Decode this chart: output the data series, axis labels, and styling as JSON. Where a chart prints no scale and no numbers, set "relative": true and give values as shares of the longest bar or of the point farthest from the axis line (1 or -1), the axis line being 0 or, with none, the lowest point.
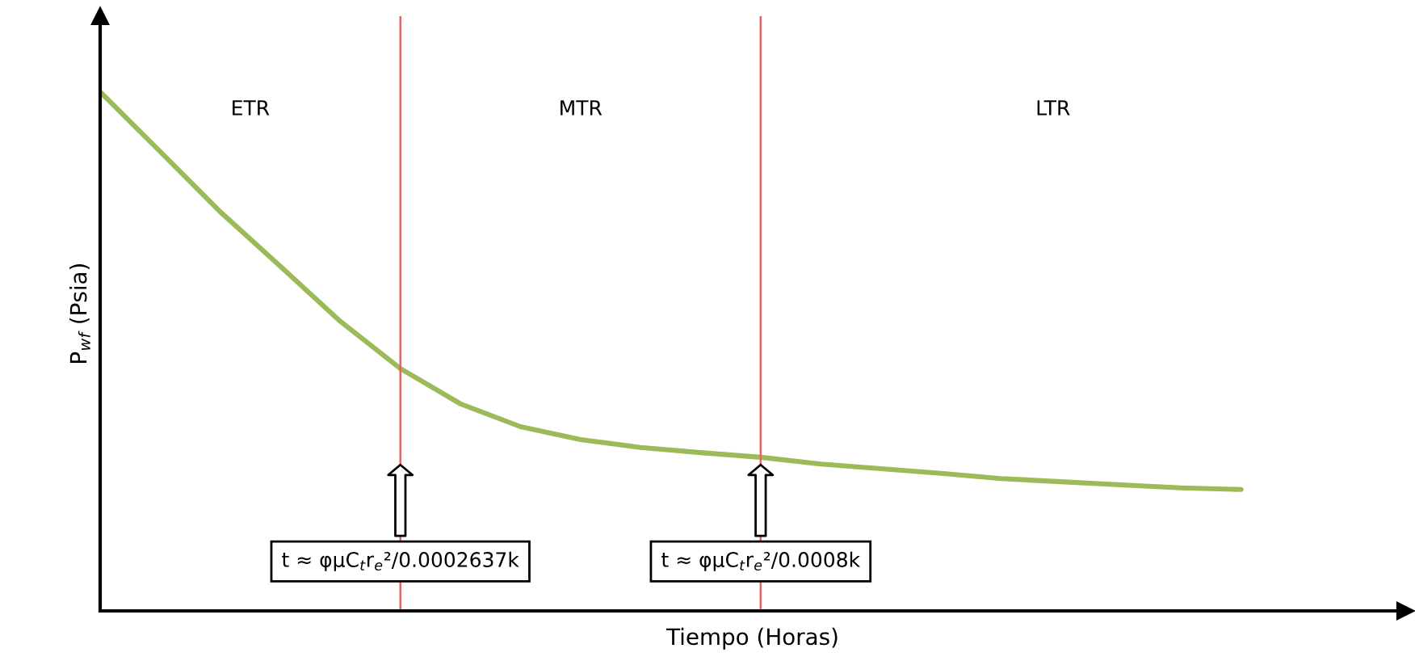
{
  "chart_data": {
    "type": "line",
    "relative": true,
    "xlabel": "Tiempo (Horas)",
    "ylabel": "P$_{wf}$ (Psia)",
    "categories": [
      null,
      null,
      null,
      null,
      null,
      null,
      null,
      null,
      null,
      null,
      null,
      null,
      null,
      null,
      null,
      null,
      null,
      null,
      null,
      null
    ],
    "series": [
      {
        "color": "#9bbb59",
        "values": [
          1.0,
          0.885,
          0.769,
          0.664,
          0.558,
          0.467,
          0.399,
          0.355,
          0.33,
          0.315,
          0.305,
          0.296,
          0.283,
          0.274,
          0.265,
          0.255,
          0.249,
          0.243,
          0.237,
          0.234
        ]
      }
    ],
    "annotations": [
      "ETR",
      "MTR",
      "LTR",
      "t ≈ φμC$_{t}$r$_{e}$²/0.0002637k",
      "t ≈ φμC$_{t}$r$_{e}$²/0.0008k"
    ],
    "legend": false,
    "marker": "none",
    "line_style": "solid"
  }
}
